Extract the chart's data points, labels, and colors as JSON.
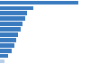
{
  "values": [
    2000,
    860,
    700,
    640,
    580,
    530,
    470,
    420,
    360,
    300,
    200,
    120
  ],
  "bar_colors": [
    "#3a7abf",
    "#3a7abf",
    "#3a7abf",
    "#3a7abf",
    "#3a7abf",
    "#3a7abf",
    "#3a7abf",
    "#3a7abf",
    "#3a7abf",
    "#3a7abf",
    "#3a7abf",
    "#b8cfe8"
  ],
  "background_color": "#ffffff",
  "grid_color": "#d9d9d9",
  "xlim": [
    0,
    2300
  ],
  "bar_height": 0.78
}
